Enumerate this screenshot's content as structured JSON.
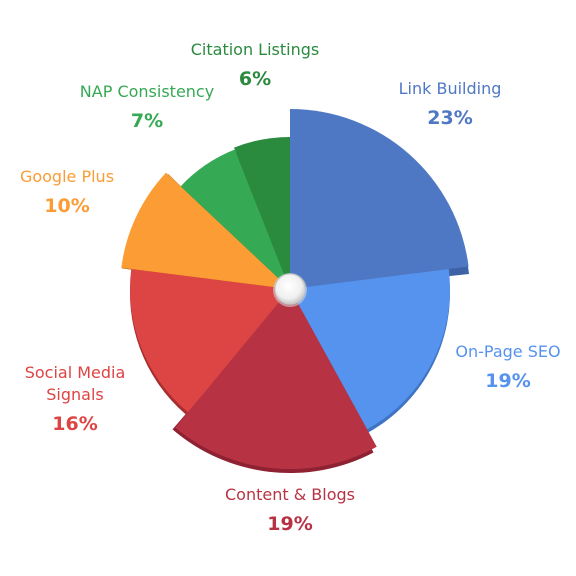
{
  "chart_data": {
    "type": "pie",
    "title": "",
    "slices": [
      {
        "label": [
          "Link Building"
        ],
        "value": 23,
        "display": "23%",
        "color": "#4E78C4",
        "shade": "#3E62A6"
      },
      {
        "label": [
          "On-Page SEO"
        ],
        "value": 19,
        "display": "19%",
        "color": "#5593EE",
        "shade": "#3F74C2"
      },
      {
        "label": [
          "Content & Blogs"
        ],
        "value": 19,
        "display": "19%",
        "color": "#B73344",
        "shade": "#8E2232"
      },
      {
        "label": [
          "Social Media",
          "Signals"
        ],
        "value": 16,
        "display": "16%",
        "color": "#DD4444",
        "shade": "#A82E2E"
      },
      {
        "label": [
          "Google Plus"
        ],
        "value": 10,
        "display": "10%",
        "color": "#FB9C35",
        "shade": "#C27420"
      },
      {
        "label": [
          "NAP Consistency"
        ],
        "value": 7,
        "display": "7%",
        "color": "#35A954",
        "shade": "#247A3B"
      },
      {
        "label": [
          "Citation Listings"
        ],
        "value": 6,
        "display": "6%",
        "color": "#2A8A3E",
        "shade": "#1E6A2E"
      }
    ],
    "legend": "none",
    "labels_outside": true
  }
}
